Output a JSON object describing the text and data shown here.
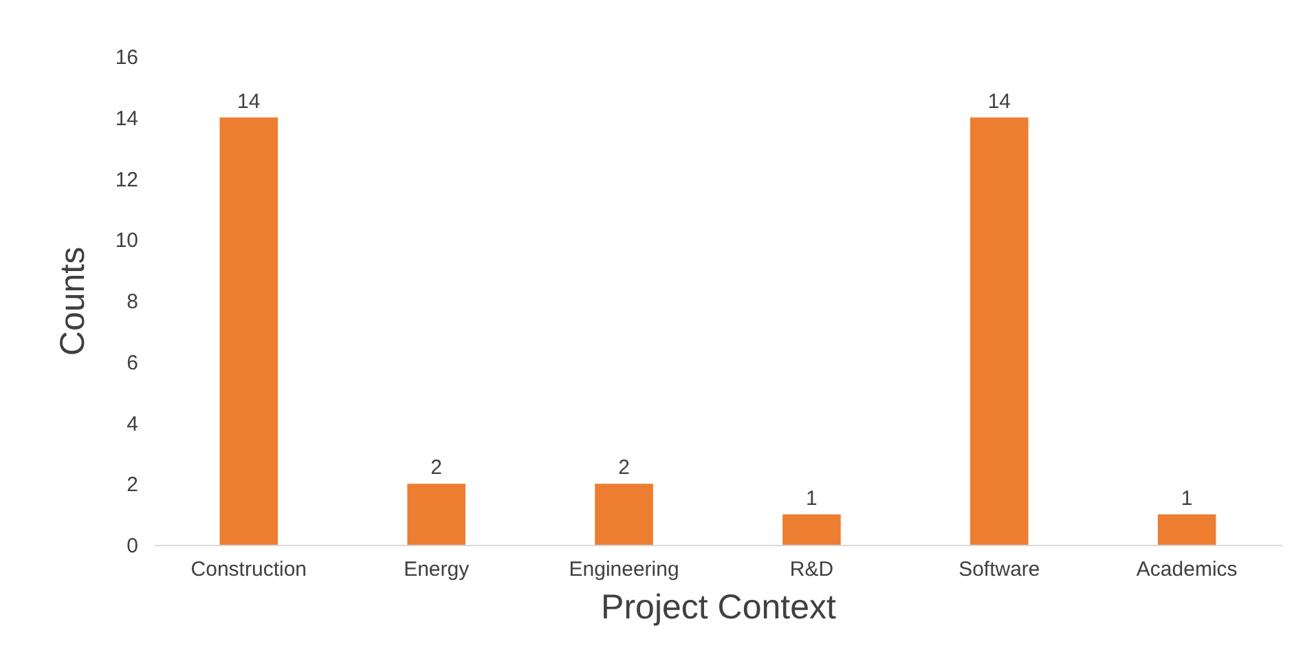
{
  "chart_data": {
    "type": "bar",
    "xlabel": "Project Context",
    "ylabel": "Counts",
    "categories": [
      "Construction",
      "Energy",
      "Engineering",
      "R&D",
      "Software",
      "Academics"
    ],
    "values": [
      14,
      2,
      2,
      1,
      14,
      1
    ],
    "color": "#ed7d31",
    "ylim": [
      0,
      16
    ],
    "yticks": [
      0,
      2,
      4,
      6,
      8,
      10,
      12,
      14,
      16
    ],
    "grid": false,
    "data_labels": true
  }
}
